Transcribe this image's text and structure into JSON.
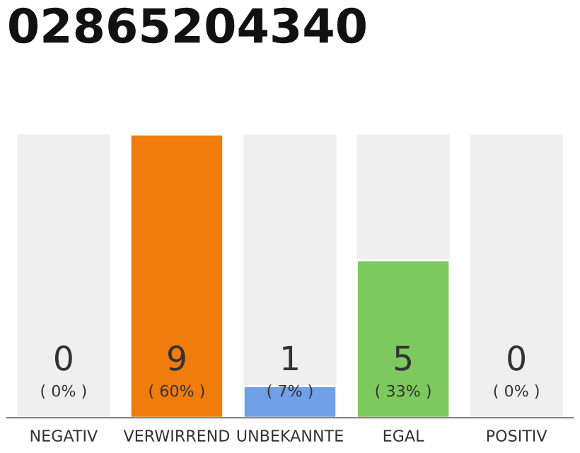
{
  "chart_data": {
    "type": "bar",
    "title": "02865204340",
    "categories": [
      "NEGATIV",
      "VERWIRREND",
      "UNBEKANNTE",
      "EGAL",
      "POSITIV"
    ],
    "values": [
      0,
      9,
      1,
      5,
      0
    ],
    "colors": [
      null,
      "#f07c0c",
      "#6fa0e8",
      "#7dc95e",
      null
    ],
    "ylim": [
      0,
      9
    ],
    "data_labels": true,
    "annotations": [
      "( 0% )",
      "( 60% )",
      "( 7% )",
      "( 33% )",
      "( 0% )"
    ],
    "grid": false,
    "legend": false
  }
}
